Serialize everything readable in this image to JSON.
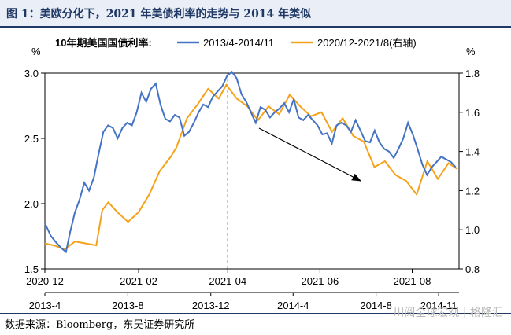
{
  "figure": {
    "title": "图 1：美欧分化下，2021 年美债利率的走势与 2014 年类似",
    "source": "数据来源：Bloomberg，东吴证券研究所",
    "watermark": "川阅全球宏观 | 格隆汇"
  },
  "chart_data": {
    "type": "line",
    "title": "",
    "legend_title": "10年期美国国债利率:",
    "legend_position": "top",
    "y_left": {
      "label": "%",
      "range": [
        1.5,
        3.0
      ],
      "ticks": [
        "1.5",
        "2.0",
        "2.5",
        "3.0"
      ]
    },
    "y_right": {
      "label": "%",
      "range": [
        0.8,
        1.8
      ],
      "ticks": [
        "0.8",
        "1.0",
        "1.2",
        "1.4",
        "1.6",
        "1.8"
      ]
    },
    "x_top": {
      "range": [
        "2020-12-01",
        "2021-09-01"
      ],
      "ticks": [
        {
          "label": "2020-12",
          "date": "2020-12-01"
        },
        {
          "label": "2021-02",
          "date": "2021-02-01"
        },
        {
          "label": "2021-04",
          "date": "2021-04-01"
        },
        {
          "label": "2021-06",
          "date": "2021-06-01"
        },
        {
          "label": "2021-08",
          "date": "2021-08-01"
        }
      ]
    },
    "x_bottom": {
      "range": [
        "2013-04-01",
        "2014-12-01"
      ],
      "ticks": [
        {
          "label": "2013-4",
          "date": "2013-04-01"
        },
        {
          "label": "2013-8",
          "date": "2013-08-01"
        },
        {
          "label": "2013-12",
          "date": "2013-12-01"
        },
        {
          "label": "2014-4",
          "date": "2014-04-01"
        },
        {
          "label": "2014-8",
          "date": "2014-08-01"
        },
        {
          "label": "2014-11",
          "date": "2014-11-01"
        }
      ]
    },
    "grid": false,
    "vline_date": "2021-04-01",
    "series": [
      {
        "name": "2013/4-2014/11",
        "axis": "left",
        "color": "#4472c4",
        "points": [
          [
            "2013-04-01",
            1.85
          ],
          [
            "2013-04-10",
            1.75
          ],
          [
            "2013-04-18",
            1.7
          ],
          [
            "2013-04-25",
            1.66
          ],
          [
            "2013-05-02",
            1.63
          ],
          [
            "2013-05-08",
            1.78
          ],
          [
            "2013-05-15",
            1.93
          ],
          [
            "2013-05-22",
            2.03
          ],
          [
            "2013-05-29",
            2.16
          ],
          [
            "2013-06-05",
            2.1
          ],
          [
            "2013-06-12",
            2.2
          ],
          [
            "2013-06-19",
            2.38
          ],
          [
            "2013-06-26",
            2.55
          ],
          [
            "2013-07-03",
            2.6
          ],
          [
            "2013-07-10",
            2.58
          ],
          [
            "2013-07-17",
            2.5
          ],
          [
            "2013-07-24",
            2.58
          ],
          [
            "2013-07-31",
            2.62
          ],
          [
            "2013-08-07",
            2.6
          ],
          [
            "2013-08-14",
            2.7
          ],
          [
            "2013-08-21",
            2.85
          ],
          [
            "2013-08-28",
            2.78
          ],
          [
            "2013-09-04",
            2.88
          ],
          [
            "2013-09-11",
            2.92
          ],
          [
            "2013-09-18",
            2.76
          ],
          [
            "2013-09-25",
            2.65
          ],
          [
            "2013-10-02",
            2.63
          ],
          [
            "2013-10-09",
            2.68
          ],
          [
            "2013-10-16",
            2.66
          ],
          [
            "2013-10-23",
            2.52
          ],
          [
            "2013-10-30",
            2.55
          ],
          [
            "2013-11-06",
            2.62
          ],
          [
            "2013-11-13",
            2.7
          ],
          [
            "2013-11-20",
            2.76
          ],
          [
            "2013-11-27",
            2.74
          ],
          [
            "2013-12-04",
            2.82
          ],
          [
            "2013-12-11",
            2.86
          ],
          [
            "2013-12-18",
            2.9
          ],
          [
            "2013-12-25",
            2.98
          ],
          [
            "2014-01-01",
            3.01
          ],
          [
            "2014-01-08",
            2.96
          ],
          [
            "2014-01-15",
            2.84
          ],
          [
            "2014-01-22",
            2.78
          ],
          [
            "2014-01-29",
            2.7
          ],
          [
            "2014-02-05",
            2.62
          ],
          [
            "2014-02-12",
            2.74
          ],
          [
            "2014-02-19",
            2.72
          ],
          [
            "2014-02-26",
            2.66
          ],
          [
            "2014-03-05",
            2.7
          ],
          [
            "2014-03-12",
            2.73
          ],
          [
            "2014-03-19",
            2.77
          ],
          [
            "2014-03-26",
            2.7
          ],
          [
            "2014-04-02",
            2.8
          ],
          [
            "2014-04-09",
            2.66
          ],
          [
            "2014-04-16",
            2.64
          ],
          [
            "2014-04-23",
            2.68
          ],
          [
            "2014-04-30",
            2.64
          ],
          [
            "2014-05-07",
            2.6
          ],
          [
            "2014-05-14",
            2.53
          ],
          [
            "2014-05-21",
            2.54
          ],
          [
            "2014-05-28",
            2.46
          ],
          [
            "2014-06-04",
            2.6
          ],
          [
            "2014-06-11",
            2.62
          ],
          [
            "2014-06-18",
            2.6
          ],
          [
            "2014-06-25",
            2.55
          ],
          [
            "2014-07-02",
            2.64
          ],
          [
            "2014-07-09",
            2.56
          ],
          [
            "2014-07-16",
            2.48
          ],
          [
            "2014-07-23",
            2.47
          ],
          [
            "2014-07-30",
            2.56
          ],
          [
            "2014-08-06",
            2.47
          ],
          [
            "2014-08-13",
            2.42
          ],
          [
            "2014-08-20",
            2.4
          ],
          [
            "2014-08-27",
            2.35
          ],
          [
            "2014-09-03",
            2.42
          ],
          [
            "2014-09-10",
            2.5
          ],
          [
            "2014-09-17",
            2.62
          ],
          [
            "2014-09-24",
            2.53
          ],
          [
            "2014-10-01",
            2.42
          ],
          [
            "2014-10-08",
            2.3
          ],
          [
            "2014-10-15",
            2.22
          ],
          [
            "2014-10-22",
            2.28
          ],
          [
            "2014-10-29",
            2.32
          ],
          [
            "2014-11-05",
            2.36
          ],
          [
            "2014-11-12",
            2.34
          ],
          [
            "2014-11-19",
            2.32
          ],
          [
            "2014-11-26",
            2.28
          ]
        ]
      },
      {
        "name": "2020/12-2021/8(右轴)",
        "axis": "right",
        "color": "#f5a21b",
        "points": [
          [
            "2020-12-01",
            0.93
          ],
          [
            "2020-12-07",
            0.92
          ],
          [
            "2020-12-14",
            0.9
          ],
          [
            "2020-12-21",
            0.94
          ],
          [
            "2020-12-28",
            0.93
          ],
          [
            "2021-01-04",
            0.92
          ],
          [
            "2021-01-08",
            1.1
          ],
          [
            "2021-01-12",
            1.14
          ],
          [
            "2021-01-18",
            1.09
          ],
          [
            "2021-01-25",
            1.04
          ],
          [
            "2021-02-01",
            1.09
          ],
          [
            "2021-02-08",
            1.18
          ],
          [
            "2021-02-15",
            1.3
          ],
          [
            "2021-02-22",
            1.37
          ],
          [
            "2021-02-26",
            1.42
          ],
          [
            "2021-03-05",
            1.57
          ],
          [
            "2021-03-12",
            1.64
          ],
          [
            "2021-03-19",
            1.72
          ],
          [
            "2021-03-26",
            1.67
          ],
          [
            "2021-03-31",
            1.74
          ],
          [
            "2021-04-07",
            1.67
          ],
          [
            "2021-04-14",
            1.63
          ],
          [
            "2021-04-21",
            1.56
          ],
          [
            "2021-04-28",
            1.63
          ],
          [
            "2021-05-05",
            1.59
          ],
          [
            "2021-05-12",
            1.69
          ],
          [
            "2021-05-19",
            1.63
          ],
          [
            "2021-05-26",
            1.58
          ],
          [
            "2021-06-02",
            1.6
          ],
          [
            "2021-06-09",
            1.5
          ],
          [
            "2021-06-16",
            1.57
          ],
          [
            "2021-06-23",
            1.48
          ],
          [
            "2021-06-30",
            1.45
          ],
          [
            "2021-07-07",
            1.32
          ],
          [
            "2021-07-14",
            1.35
          ],
          [
            "2021-07-21",
            1.28
          ],
          [
            "2021-07-28",
            1.25
          ],
          [
            "2021-08-04",
            1.18
          ],
          [
            "2021-08-11",
            1.35
          ],
          [
            "2021-08-18",
            1.26
          ],
          [
            "2021-08-25",
            1.34
          ],
          [
            "2021-08-31",
            1.31
          ]
        ]
      }
    ]
  }
}
